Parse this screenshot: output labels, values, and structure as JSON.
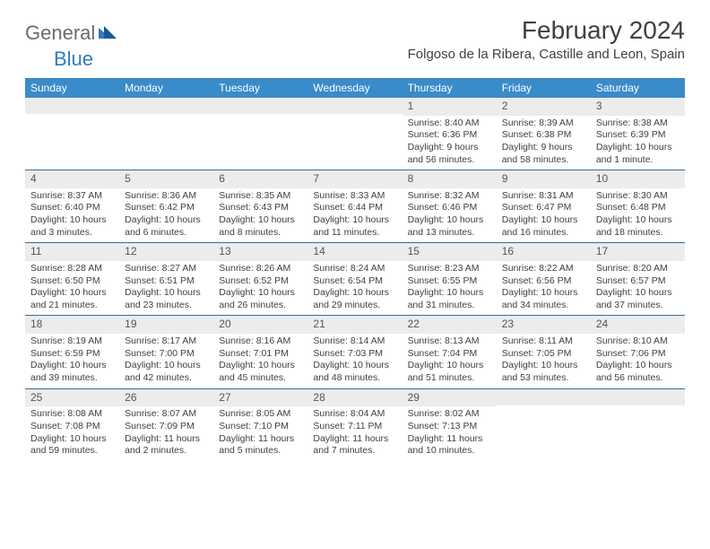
{
  "brand": {
    "general": "General",
    "blue": "Blue"
  },
  "title": "February 2024",
  "location": "Folgoso de la Ribera, Castille and Leon, Spain",
  "colors": {
    "header_bg": "#3a8bc9",
    "border": "#3a6a95",
    "daynum_bg": "#ececec",
    "text": "#404040",
    "brand_gray": "#6b6b6b",
    "brand_blue": "#2f7bbf"
  },
  "day_headers": [
    "Sunday",
    "Monday",
    "Tuesday",
    "Wednesday",
    "Thursday",
    "Friday",
    "Saturday"
  ],
  "weeks": [
    [
      null,
      null,
      null,
      null,
      {
        "n": "1",
        "sr": "Sunrise: 8:40 AM",
        "ss": "Sunset: 6:36 PM",
        "dl1": "Daylight: 9 hours",
        "dl2": "and 56 minutes."
      },
      {
        "n": "2",
        "sr": "Sunrise: 8:39 AM",
        "ss": "Sunset: 6:38 PM",
        "dl1": "Daylight: 9 hours",
        "dl2": "and 58 minutes."
      },
      {
        "n": "3",
        "sr": "Sunrise: 8:38 AM",
        "ss": "Sunset: 6:39 PM",
        "dl1": "Daylight: 10 hours",
        "dl2": "and 1 minute."
      }
    ],
    [
      {
        "n": "4",
        "sr": "Sunrise: 8:37 AM",
        "ss": "Sunset: 6:40 PM",
        "dl1": "Daylight: 10 hours",
        "dl2": "and 3 minutes."
      },
      {
        "n": "5",
        "sr": "Sunrise: 8:36 AM",
        "ss": "Sunset: 6:42 PM",
        "dl1": "Daylight: 10 hours",
        "dl2": "and 6 minutes."
      },
      {
        "n": "6",
        "sr": "Sunrise: 8:35 AM",
        "ss": "Sunset: 6:43 PM",
        "dl1": "Daylight: 10 hours",
        "dl2": "and 8 minutes."
      },
      {
        "n": "7",
        "sr": "Sunrise: 8:33 AM",
        "ss": "Sunset: 6:44 PM",
        "dl1": "Daylight: 10 hours",
        "dl2": "and 11 minutes."
      },
      {
        "n": "8",
        "sr": "Sunrise: 8:32 AM",
        "ss": "Sunset: 6:46 PM",
        "dl1": "Daylight: 10 hours",
        "dl2": "and 13 minutes."
      },
      {
        "n": "9",
        "sr": "Sunrise: 8:31 AM",
        "ss": "Sunset: 6:47 PM",
        "dl1": "Daylight: 10 hours",
        "dl2": "and 16 minutes."
      },
      {
        "n": "10",
        "sr": "Sunrise: 8:30 AM",
        "ss": "Sunset: 6:48 PM",
        "dl1": "Daylight: 10 hours",
        "dl2": "and 18 minutes."
      }
    ],
    [
      {
        "n": "11",
        "sr": "Sunrise: 8:28 AM",
        "ss": "Sunset: 6:50 PM",
        "dl1": "Daylight: 10 hours",
        "dl2": "and 21 minutes."
      },
      {
        "n": "12",
        "sr": "Sunrise: 8:27 AM",
        "ss": "Sunset: 6:51 PM",
        "dl1": "Daylight: 10 hours",
        "dl2": "and 23 minutes."
      },
      {
        "n": "13",
        "sr": "Sunrise: 8:26 AM",
        "ss": "Sunset: 6:52 PM",
        "dl1": "Daylight: 10 hours",
        "dl2": "and 26 minutes."
      },
      {
        "n": "14",
        "sr": "Sunrise: 8:24 AM",
        "ss": "Sunset: 6:54 PM",
        "dl1": "Daylight: 10 hours",
        "dl2": "and 29 minutes."
      },
      {
        "n": "15",
        "sr": "Sunrise: 8:23 AM",
        "ss": "Sunset: 6:55 PM",
        "dl1": "Daylight: 10 hours",
        "dl2": "and 31 minutes."
      },
      {
        "n": "16",
        "sr": "Sunrise: 8:22 AM",
        "ss": "Sunset: 6:56 PM",
        "dl1": "Daylight: 10 hours",
        "dl2": "and 34 minutes."
      },
      {
        "n": "17",
        "sr": "Sunrise: 8:20 AM",
        "ss": "Sunset: 6:57 PM",
        "dl1": "Daylight: 10 hours",
        "dl2": "and 37 minutes."
      }
    ],
    [
      {
        "n": "18",
        "sr": "Sunrise: 8:19 AM",
        "ss": "Sunset: 6:59 PM",
        "dl1": "Daylight: 10 hours",
        "dl2": "and 39 minutes."
      },
      {
        "n": "19",
        "sr": "Sunrise: 8:17 AM",
        "ss": "Sunset: 7:00 PM",
        "dl1": "Daylight: 10 hours",
        "dl2": "and 42 minutes."
      },
      {
        "n": "20",
        "sr": "Sunrise: 8:16 AM",
        "ss": "Sunset: 7:01 PM",
        "dl1": "Daylight: 10 hours",
        "dl2": "and 45 minutes."
      },
      {
        "n": "21",
        "sr": "Sunrise: 8:14 AM",
        "ss": "Sunset: 7:03 PM",
        "dl1": "Daylight: 10 hours",
        "dl2": "and 48 minutes."
      },
      {
        "n": "22",
        "sr": "Sunrise: 8:13 AM",
        "ss": "Sunset: 7:04 PM",
        "dl1": "Daylight: 10 hours",
        "dl2": "and 51 minutes."
      },
      {
        "n": "23",
        "sr": "Sunrise: 8:11 AM",
        "ss": "Sunset: 7:05 PM",
        "dl1": "Daylight: 10 hours",
        "dl2": "and 53 minutes."
      },
      {
        "n": "24",
        "sr": "Sunrise: 8:10 AM",
        "ss": "Sunset: 7:06 PM",
        "dl1": "Daylight: 10 hours",
        "dl2": "and 56 minutes."
      }
    ],
    [
      {
        "n": "25",
        "sr": "Sunrise: 8:08 AM",
        "ss": "Sunset: 7:08 PM",
        "dl1": "Daylight: 10 hours",
        "dl2": "and 59 minutes."
      },
      {
        "n": "26",
        "sr": "Sunrise: 8:07 AM",
        "ss": "Sunset: 7:09 PM",
        "dl1": "Daylight: 11 hours",
        "dl2": "and 2 minutes."
      },
      {
        "n": "27",
        "sr": "Sunrise: 8:05 AM",
        "ss": "Sunset: 7:10 PM",
        "dl1": "Daylight: 11 hours",
        "dl2": "and 5 minutes."
      },
      {
        "n": "28",
        "sr": "Sunrise: 8:04 AM",
        "ss": "Sunset: 7:11 PM",
        "dl1": "Daylight: 11 hours",
        "dl2": "and 7 minutes."
      },
      {
        "n": "29",
        "sr": "Sunrise: 8:02 AM",
        "ss": "Sunset: 7:13 PM",
        "dl1": "Daylight: 11 hours",
        "dl2": "and 10 minutes."
      },
      null,
      null
    ]
  ]
}
